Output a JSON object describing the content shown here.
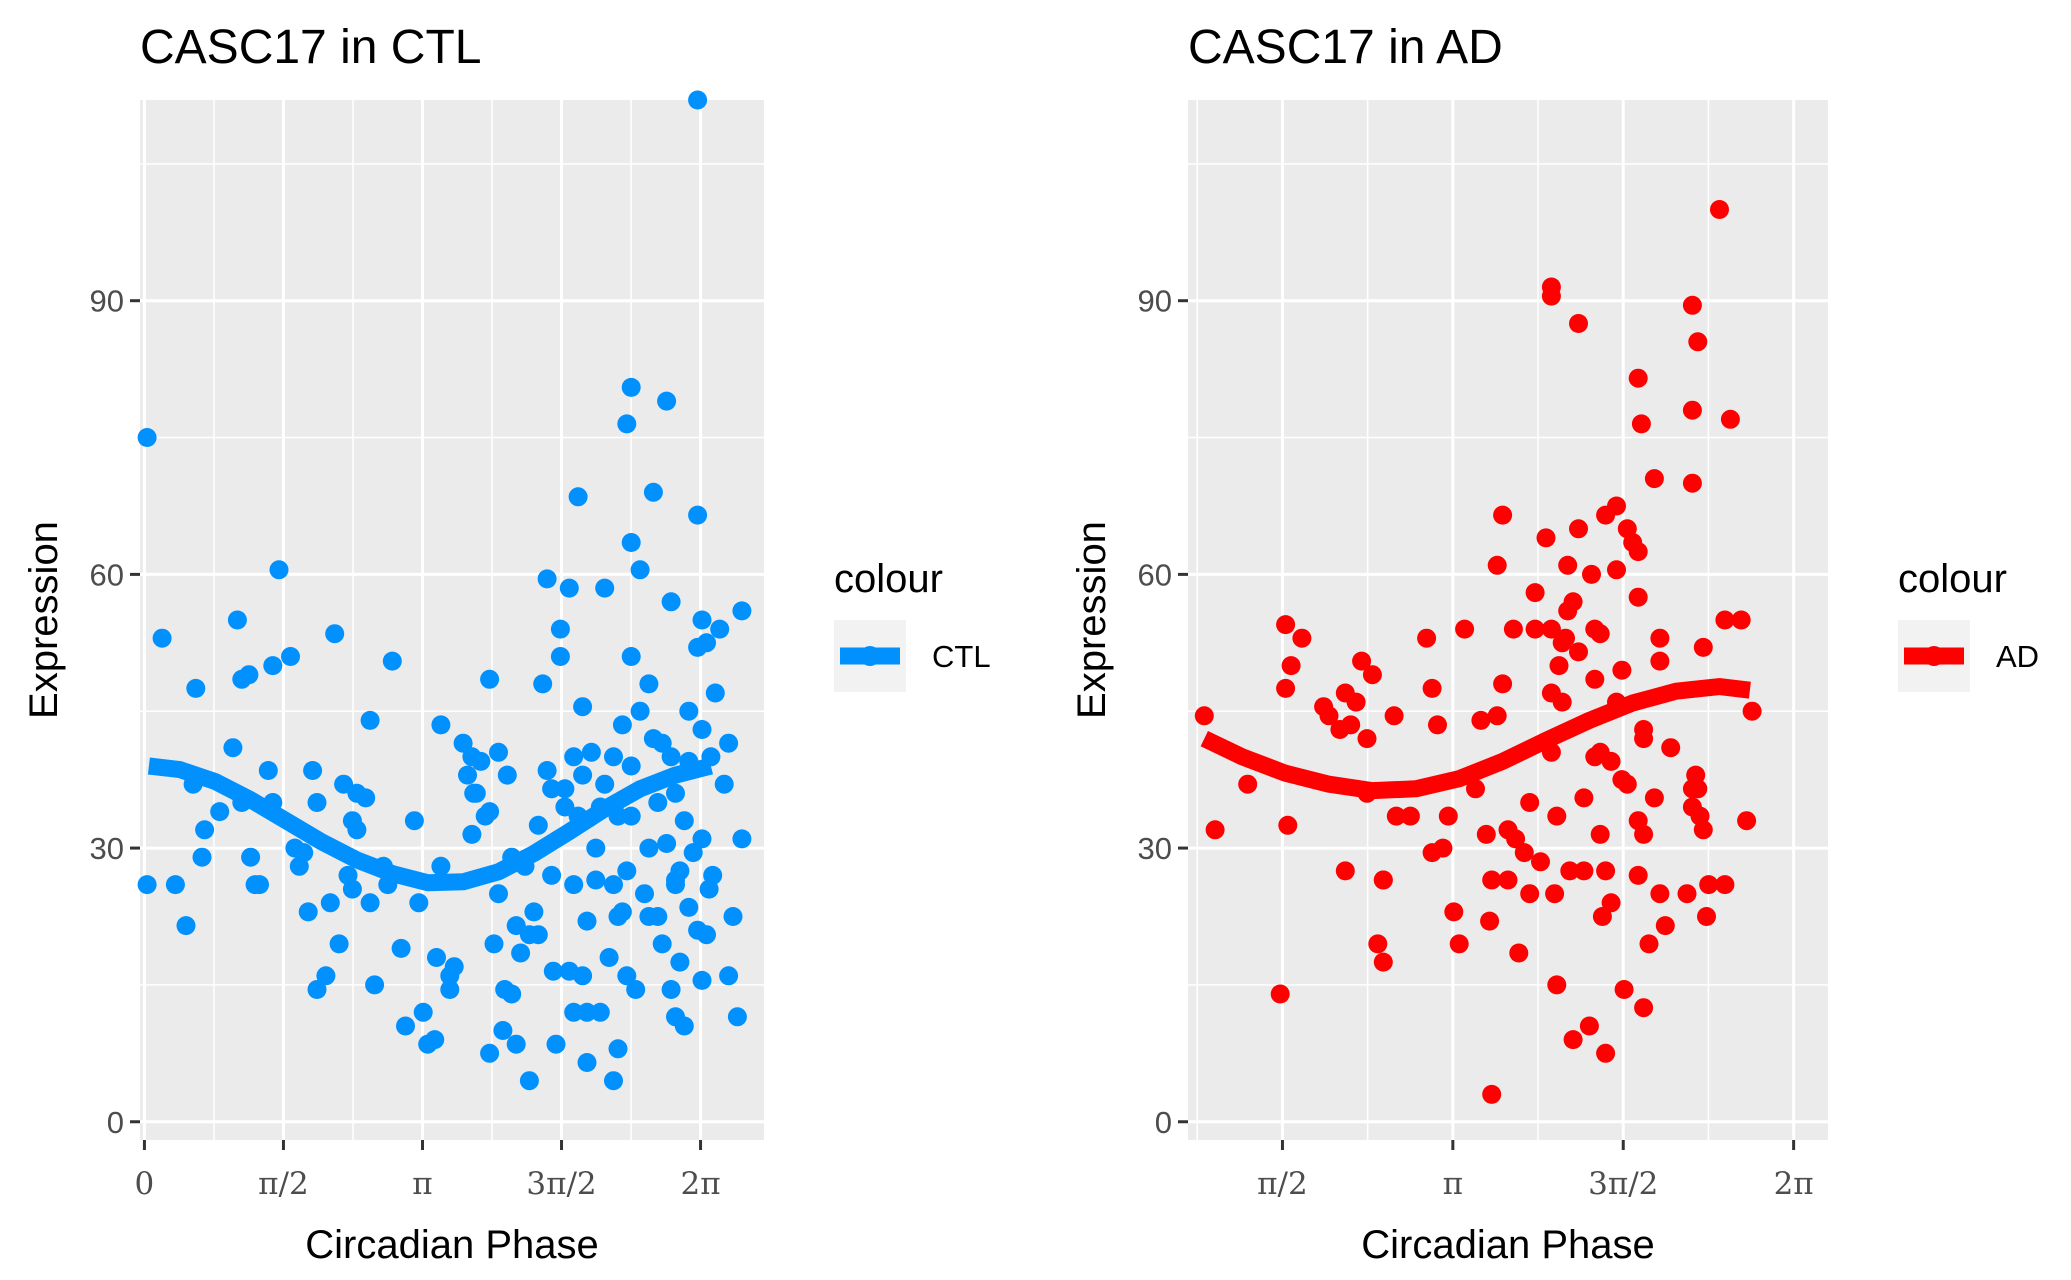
{
  "chart_data": [
    {
      "type": "scatter",
      "title": "CASC17 in CTL",
      "xlabel": "Circadian Phase",
      "ylabel": "Expression",
      "xlim": [
        -0.05,
        7.0
      ],
      "ylim": [
        -2,
        112
      ],
      "x_ticks": [
        0,
        1.5708,
        3.1416,
        4.7124,
        6.2832
      ],
      "x_tick_labels": [
        "0",
        "π/2",
        "π",
        "3π/2",
        "2π"
      ],
      "y_ticks": [
        0,
        30,
        60,
        90
      ],
      "y_tick_labels": [
        "0",
        "30",
        "60",
        "90"
      ],
      "grid": true,
      "legend": {
        "title": "colour",
        "entries": [
          "CTL"
        ],
        "placement": "right"
      },
      "color": "#0091FF",
      "points": [
        [
          0.03,
          75
        ],
        [
          0.03,
          26
        ],
        [
          0.2,
          53
        ],
        [
          0.35,
          26
        ],
        [
          0.47,
          21.5
        ],
        [
          0.55,
          37
        ],
        [
          0.58,
          47.5
        ],
        [
          0.65,
          29
        ],
        [
          0.68,
          32
        ],
        [
          0.85,
          34
        ],
        [
          1.0,
          41
        ],
        [
          1.05,
          55
        ],
        [
          1.1,
          35
        ],
        [
          1.1,
          48.5
        ],
        [
          1.18,
          49
        ],
        [
          1.2,
          29
        ],
        [
          1.25,
          26
        ],
        [
          1.3,
          26
        ],
        [
          1.4,
          38.5
        ],
        [
          1.45,
          35
        ],
        [
          1.45,
          50
        ],
        [
          1.52,
          60.5
        ],
        [
          1.65,
          51
        ],
        [
          1.7,
          30
        ],
        [
          1.8,
          29.5
        ],
        [
          1.75,
          28
        ],
        [
          1.85,
          23
        ],
        [
          1.9,
          38.5
        ],
        [
          1.95,
          35
        ],
        [
          1.95,
          14.5
        ],
        [
          2.05,
          16
        ],
        [
          2.1,
          24
        ],
        [
          2.15,
          53.5
        ],
        [
          2.25,
          37
        ],
        [
          2.2,
          19.5
        ],
        [
          2.3,
          27
        ],
        [
          2.35,
          33
        ],
        [
          2.4,
          32
        ],
        [
          2.35,
          25.5
        ],
        [
          2.4,
          36
        ],
        [
          2.5,
          35.5
        ],
        [
          2.55,
          24
        ],
        [
          2.6,
          15
        ],
        [
          2.55,
          44
        ],
        [
          2.7,
          28
        ],
        [
          2.75,
          26
        ],
        [
          2.8,
          50.5
        ],
        [
          2.9,
          19
        ],
        [
          3.05,
          33
        ],
        [
          2.95,
          10.5
        ],
        [
          3.1,
          24
        ],
        [
          3.15,
          12
        ],
        [
          3.2,
          8.5
        ],
        [
          3.28,
          9
        ],
        [
          3.3,
          18
        ],
        [
          3.35,
          43.5
        ],
        [
          3.35,
          28
        ],
        [
          3.45,
          16
        ],
        [
          3.45,
          14.5
        ],
        [
          3.5,
          17
        ],
        [
          3.6,
          41.5
        ],
        [
          3.65,
          38
        ],
        [
          3.7,
          40
        ],
        [
          3.72,
          36
        ],
        [
          3.75,
          36
        ],
        [
          3.7,
          31.5
        ],
        [
          3.8,
          39.5
        ],
        [
          3.85,
          33.5
        ],
        [
          3.9,
          48.5
        ],
        [
          3.9,
          34
        ],
        [
          3.9,
          7.5
        ],
        [
          3.95,
          19.5
        ],
        [
          4.0,
          40.5
        ],
        [
          4.0,
          25
        ],
        [
          4.05,
          10
        ],
        [
          4.07,
          14.5
        ],
        [
          4.1,
          38
        ],
        [
          4.15,
          29
        ],
        [
          4.15,
          14
        ],
        [
          4.2,
          8.5
        ],
        [
          4.2,
          21.5
        ],
        [
          4.25,
          18.5
        ],
        [
          4.3,
          28
        ],
        [
          4.35,
          20.5
        ],
        [
          4.35,
          4.5
        ],
        [
          4.4,
          23
        ],
        [
          4.45,
          32.5
        ],
        [
          4.45,
          20.5
        ],
        [
          4.5,
          48
        ],
        [
          4.55,
          59.5
        ],
        [
          4.55,
          38.5
        ],
        [
          4.6,
          36.5
        ],
        [
          4.6,
          27
        ],
        [
          4.62,
          16.5
        ],
        [
          4.65,
          8.5
        ],
        [
          4.7,
          51
        ],
        [
          4.7,
          54
        ],
        [
          4.75,
          34.5
        ],
        [
          4.75,
          36.5
        ],
        [
          4.8,
          58.5
        ],
        [
          4.8,
          16.5
        ],
        [
          4.85,
          26
        ],
        [
          4.85,
          12
        ],
        [
          4.85,
          40
        ],
        [
          4.9,
          33.5
        ],
        [
          4.9,
          68.5
        ],
        [
          4.95,
          45.5
        ],
        [
          4.95,
          38
        ],
        [
          4.95,
          16
        ],
        [
          5.0,
          22
        ],
        [
          5.0,
          12
        ],
        [
          5.0,
          6.5
        ],
        [
          5.05,
          40.5
        ],
        [
          5.1,
          30
        ],
        [
          5.1,
          26.5
        ],
        [
          5.15,
          34.5
        ],
        [
          5.15,
          12
        ],
        [
          5.2,
          58.5
        ],
        [
          5.2,
          37
        ],
        [
          5.25,
          18
        ],
        [
          5.3,
          40
        ],
        [
          5.3,
          26
        ],
        [
          5.3,
          4.5
        ],
        [
          5.35,
          22.5
        ],
        [
          5.35,
          33.5
        ],
        [
          5.35,
          8
        ],
        [
          5.4,
          43.5
        ],
        [
          5.4,
          23
        ],
        [
          5.45,
          76.5
        ],
        [
          5.45,
          27.5
        ],
        [
          5.45,
          16
        ],
        [
          5.5,
          80.5
        ],
        [
          5.5,
          63.5
        ],
        [
          5.5,
          51
        ],
        [
          5.5,
          39
        ],
        [
          5.5,
          33.5
        ],
        [
          5.55,
          14.5
        ],
        [
          5.6,
          60.5
        ],
        [
          5.6,
          45
        ],
        [
          5.65,
          25
        ],
        [
          5.7,
          30
        ],
        [
          5.7,
          22.5
        ],
        [
          5.7,
          48
        ],
        [
          5.75,
          69
        ],
        [
          5.75,
          42
        ],
        [
          5.8,
          22.5
        ],
        [
          5.8,
          35
        ],
        [
          5.85,
          41.5
        ],
        [
          5.85,
          19.5
        ],
        [
          5.9,
          79
        ],
        [
          5.9,
          30.5
        ],
        [
          5.95,
          57
        ],
        [
          5.95,
          40
        ],
        [
          5.95,
          14.5
        ],
        [
          6.0,
          26.5
        ],
        [
          6.0,
          36
        ],
        [
          6.0,
          26
        ],
        [
          6.0,
          11.5
        ],
        [
          6.05,
          17.5
        ],
        [
          6.05,
          27.5
        ],
        [
          6.1,
          33
        ],
        [
          6.1,
          10.5
        ],
        [
          6.15,
          45
        ],
        [
          6.15,
          39.5
        ],
        [
          6.15,
          23.5
        ],
        [
          6.2,
          29.5
        ],
        [
          6.25,
          112
        ],
        [
          6.25,
          66.5
        ],
        [
          6.25,
          52
        ],
        [
          6.25,
          21
        ],
        [
          6.3,
          55
        ],
        [
          6.3,
          43
        ],
        [
          6.3,
          31
        ],
        [
          6.3,
          15.5
        ],
        [
          6.35,
          52.5
        ],
        [
          6.35,
          20.5
        ],
        [
          6.38,
          25.5
        ],
        [
          6.4,
          40
        ],
        [
          6.42,
          27
        ],
        [
          6.45,
          47
        ],
        [
          6.5,
          54
        ],
        [
          6.55,
          37
        ],
        [
          6.6,
          41.5
        ],
        [
          6.6,
          16
        ],
        [
          6.65,
          22.5
        ],
        [
          6.7,
          11.5
        ],
        [
          6.75,
          31
        ],
        [
          6.75,
          56
        ]
      ],
      "fit": [
        [
          0.05,
          39
        ],
        [
          0.4,
          38.6
        ],
        [
          0.8,
          37.3
        ],
        [
          1.2,
          35.3
        ],
        [
          1.6,
          33
        ],
        [
          2.0,
          30.7
        ],
        [
          2.4,
          28.7
        ],
        [
          2.8,
          27.2
        ],
        [
          3.2,
          26.2
        ],
        [
          3.6,
          26.3
        ],
        [
          4.0,
          27.4
        ],
        [
          4.4,
          29.4
        ],
        [
          4.8,
          31.8
        ],
        [
          5.2,
          34.3
        ],
        [
          5.6,
          36.5
        ],
        [
          6.0,
          38
        ],
        [
          6.4,
          39
        ]
      ]
    },
    {
      "type": "scatter",
      "title": "CASC17 in AD",
      "xlabel": "Circadian Phase",
      "ylabel": "Expression",
      "xlim": [
        0.7,
        6.6
      ],
      "ylim": [
        -2,
        112
      ],
      "x_ticks": [
        1.5708,
        3.1416,
        4.7124,
        6.2832
      ],
      "x_tick_labels": [
        "π/2",
        "π",
        "3π/2",
        "2π"
      ],
      "y_ticks": [
        0,
        30,
        60,
        90
      ],
      "y_tick_labels": [
        "0",
        "30",
        "60",
        "90"
      ],
      "grid": true,
      "legend": {
        "title": "colour",
        "entries": [
          "AD"
        ],
        "placement": "right"
      },
      "color": "#FF0000",
      "points": [
        [
          0.85,
          44.5
        ],
        [
          0.95,
          32
        ],
        [
          1.25,
          37
        ],
        [
          1.55,
          14
        ],
        [
          1.6,
          54.5
        ],
        [
          1.6,
          47.5
        ],
        [
          1.62,
          32.5
        ],
        [
          1.65,
          50
        ],
        [
          1.75,
          53
        ],
        [
          1.95,
          45.5
        ],
        [
          2.0,
          44.5
        ],
        [
          2.1,
          43
        ],
        [
          2.15,
          47
        ],
        [
          2.15,
          27.5
        ],
        [
          2.2,
          43.5
        ],
        [
          2.25,
          46
        ],
        [
          2.3,
          50.5
        ],
        [
          2.35,
          42
        ],
        [
          2.35,
          36
        ],
        [
          2.4,
          49
        ],
        [
          2.45,
          19.5
        ],
        [
          2.5,
          26.5
        ],
        [
          2.5,
          17.5
        ],
        [
          2.5,
          26.5
        ],
        [
          2.6,
          44.5
        ],
        [
          2.62,
          33.5
        ],
        [
          2.75,
          33.5
        ],
        [
          2.9,
          53
        ],
        [
          2.95,
          47.5
        ],
        [
          2.95,
          29.5
        ],
        [
          3.0,
          43.5
        ],
        [
          3.05,
          30
        ],
        [
          3.1,
          33.5
        ],
        [
          3.15,
          23
        ],
        [
          3.2,
          19.5
        ],
        [
          3.25,
          54
        ],
        [
          3.35,
          36.5
        ],
        [
          3.4,
          44
        ],
        [
          3.45,
          31.5
        ],
        [
          3.48,
          22
        ],
        [
          3.5,
          26.5
        ],
        [
          3.5,
          3
        ],
        [
          3.55,
          61
        ],
        [
          3.55,
          44.5
        ],
        [
          3.6,
          66.5
        ],
        [
          3.6,
          48
        ],
        [
          3.65,
          32
        ],
        [
          3.65,
          26.5
        ],
        [
          3.7,
          54
        ],
        [
          3.72,
          31
        ],
        [
          3.75,
          18.5
        ],
        [
          3.8,
          29.5
        ],
        [
          3.85,
          25
        ],
        [
          3.85,
          35
        ],
        [
          3.9,
          58
        ],
        [
          3.9,
          54
        ],
        [
          3.95,
          28.5
        ],
        [
          4.0,
          64
        ],
        [
          4.05,
          91.5
        ],
        [
          4.05,
          90.5
        ],
        [
          4.05,
          54
        ],
        [
          4.05,
          47
        ],
        [
          4.05,
          40.5
        ],
        [
          4.08,
          25
        ],
        [
          4.1,
          33.5
        ],
        [
          4.1,
          15
        ],
        [
          4.12,
          50
        ],
        [
          4.15,
          52.5
        ],
        [
          4.15,
          46
        ],
        [
          4.18,
          53
        ],
        [
          4.2,
          61
        ],
        [
          4.2,
          56
        ],
        [
          4.22,
          27.5
        ],
        [
          4.25,
          9
        ],
        [
          4.25,
          57
        ],
        [
          4.3,
          65
        ],
        [
          4.3,
          87.5
        ],
        [
          4.3,
          51.5
        ],
        [
          4.35,
          35.5
        ],
        [
          4.35,
          27.5
        ],
        [
          4.4,
          10.5
        ],
        [
          4.42,
          60
        ],
        [
          4.45,
          54
        ],
        [
          4.45,
          48.5
        ],
        [
          4.45,
          40
        ],
        [
          4.5,
          40.5
        ],
        [
          4.5,
          53.5
        ],
        [
          4.5,
          31.5
        ],
        [
          4.52,
          22.5
        ],
        [
          4.55,
          66.5
        ],
        [
          4.55,
          27.5
        ],
        [
          4.55,
          7.5
        ],
        [
          4.6,
          39.5
        ],
        [
          4.6,
          24
        ],
        [
          4.65,
          60.5
        ],
        [
          4.65,
          46
        ],
        [
          4.65,
          67.5
        ],
        [
          4.7,
          49.5
        ],
        [
          4.7,
          37.5
        ],
        [
          4.72,
          14.5
        ],
        [
          4.75,
          65
        ],
        [
          4.75,
          37
        ],
        [
          4.8,
          63.5
        ],
        [
          4.85,
          81.5
        ],
        [
          4.85,
          62.5
        ],
        [
          4.85,
          57.5
        ],
        [
          4.85,
          33
        ],
        [
          4.85,
          27
        ],
        [
          4.88,
          76.5
        ],
        [
          4.9,
          43
        ],
        [
          4.9,
          42
        ],
        [
          4.9,
          31.5
        ],
        [
          4.9,
          12.5
        ],
        [
          4.95,
          19.5
        ],
        [
          5.0,
          35.5
        ],
        [
          5.0,
          70.5
        ],
        [
          5.05,
          53
        ],
        [
          5.05,
          50.5
        ],
        [
          5.05,
          25
        ],
        [
          5.1,
          21.5
        ],
        [
          5.15,
          41
        ],
        [
          5.3,
          25
        ],
        [
          5.35,
          89.5
        ],
        [
          5.35,
          78
        ],
        [
          5.35,
          70
        ],
        [
          5.35,
          36.5
        ],
        [
          5.35,
          34.5
        ],
        [
          5.38,
          38
        ],
        [
          5.4,
          85.5
        ],
        [
          5.4,
          36.5
        ],
        [
          5.42,
          33.5
        ],
        [
          5.45,
          32
        ],
        [
          5.45,
          52
        ],
        [
          5.48,
          22.5
        ],
        [
          5.5,
          26
        ],
        [
          5.6,
          100
        ],
        [
          5.65,
          55
        ],
        [
          5.65,
          26
        ],
        [
          5.7,
          77
        ],
        [
          5.8,
          55
        ],
        [
          5.85,
          33
        ],
        [
          5.9,
          45
        ]
      ],
      "fit": [
        [
          0.85,
          42
        ],
        [
          1.2,
          40
        ],
        [
          1.6,
          38.2
        ],
        [
          2.0,
          37
        ],
        [
          2.4,
          36.3
        ],
        [
          2.8,
          36.5
        ],
        [
          3.2,
          37.6
        ],
        [
          3.6,
          39.5
        ],
        [
          4.0,
          41.8
        ],
        [
          4.4,
          44
        ],
        [
          4.8,
          45.9
        ],
        [
          5.2,
          47.2
        ],
        [
          5.6,
          47.7
        ],
        [
          5.88,
          47.3
        ]
      ]
    }
  ]
}
